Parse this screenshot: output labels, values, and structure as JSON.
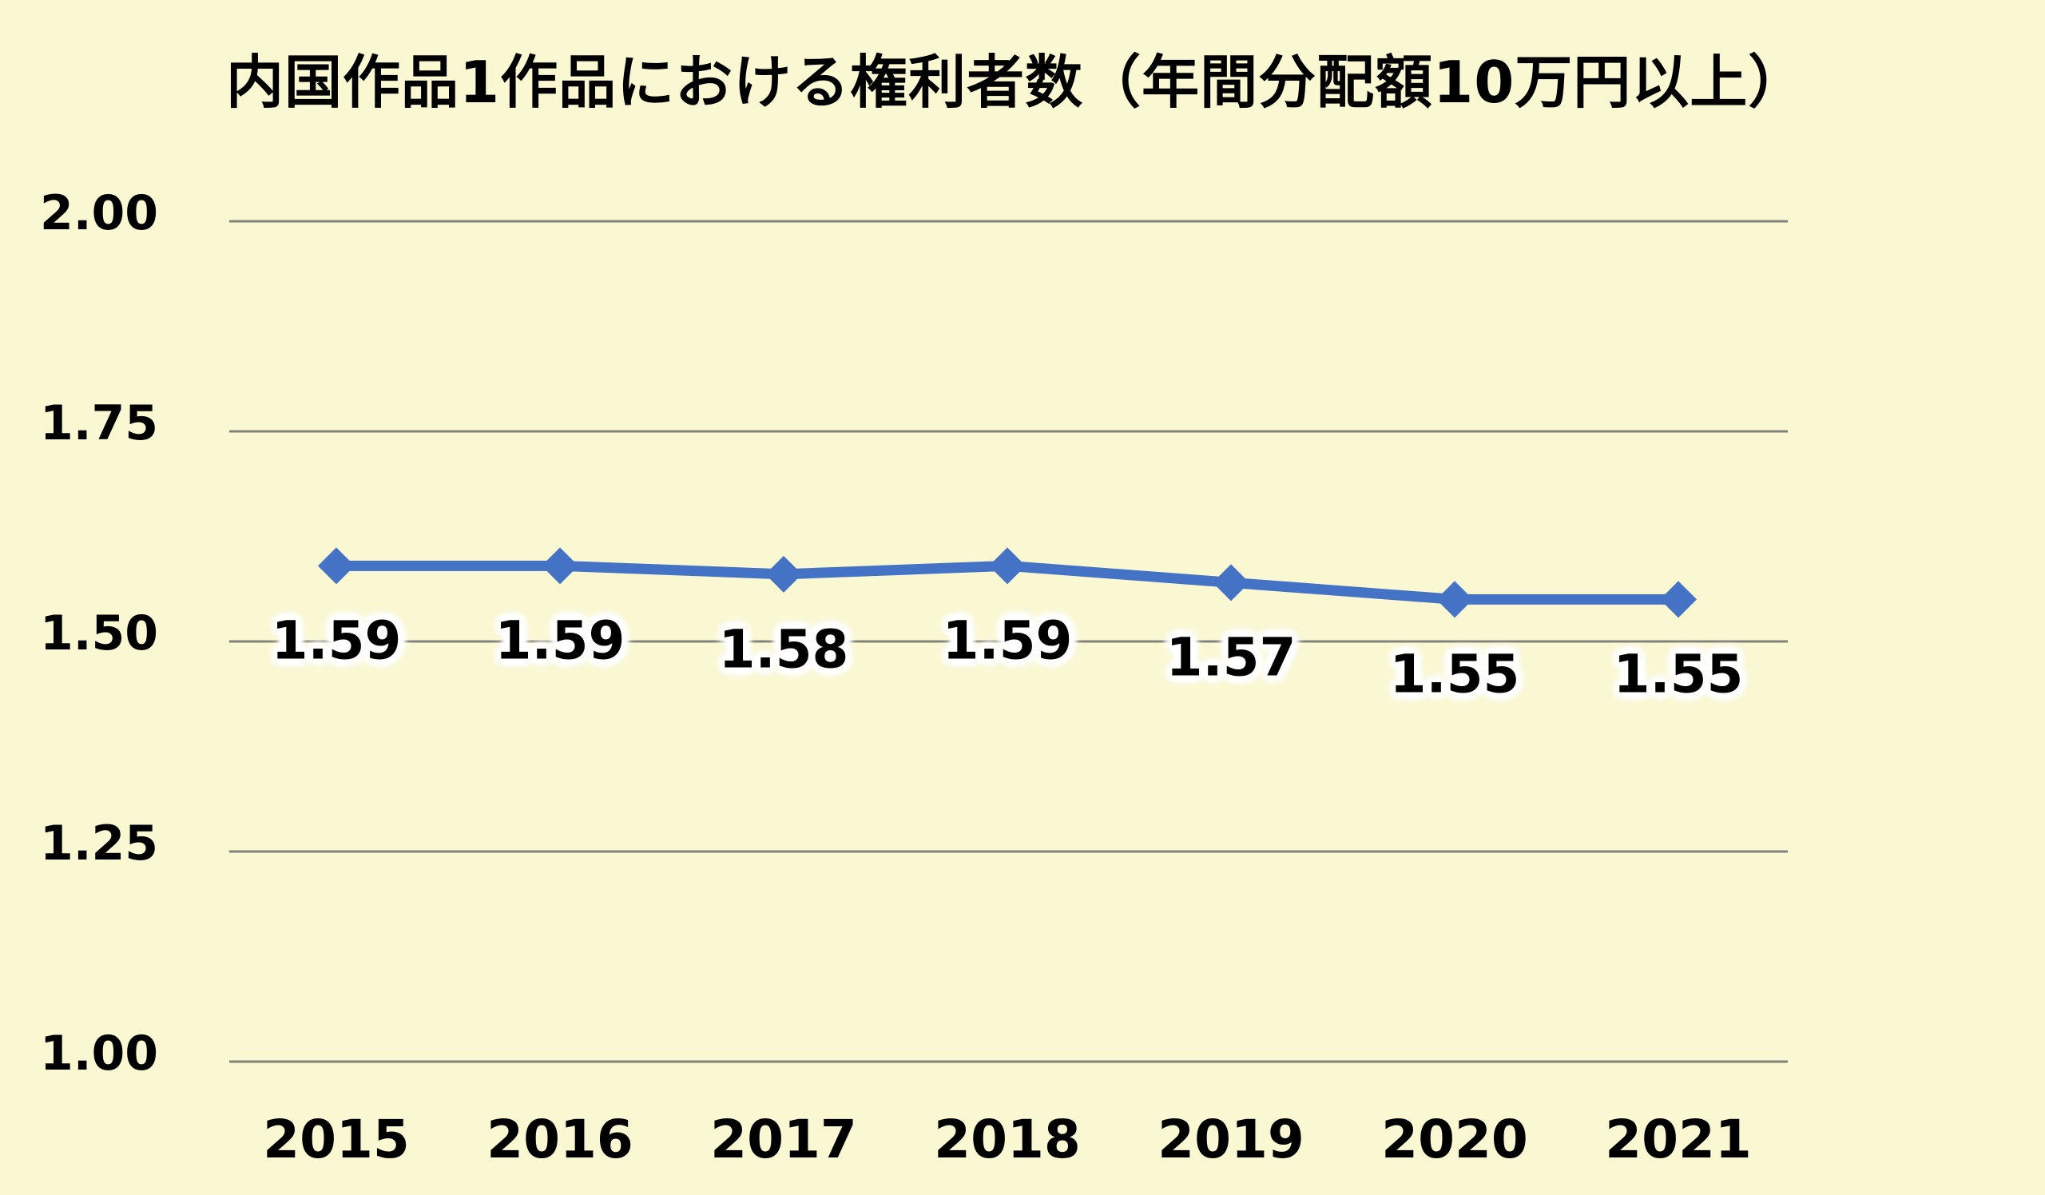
{
  "chart_data": {
    "type": "line",
    "title": "内国作品1作品における権利者数（年間分配額10万円以上）",
    "categories": [
      "2015",
      "2016",
      "2017",
      "2018",
      "2019",
      "2020",
      "2021"
    ],
    "series": [
      {
        "name": "内国作品1作品における権利者数",
        "values": [
          1.59,
          1.59,
          1.58,
          1.59,
          1.57,
          1.55,
          1.55
        ]
      }
    ],
    "data_labels": [
      "1.59",
      "1.59",
      "1.58",
      "1.59",
      "1.57",
      "1.55",
      "1.55"
    ],
    "xlabel": "",
    "ylabel": "",
    "ylim": [
      1.0,
      2.0
    ],
    "yticks": [
      {
        "value": 2.0,
        "label": "2.00"
      },
      {
        "value": 1.75,
        "label": "1.75"
      },
      {
        "value": 1.5,
        "label": "1.50"
      },
      {
        "value": 1.25,
        "label": "1.25"
      },
      {
        "value": 1.0,
        "label": "1.00"
      }
    ],
    "grid": true,
    "legend": "none",
    "marker": "diamond",
    "colors": {
      "background": "#FAF8D2",
      "series": "#4472C4",
      "gridline": "#82827A",
      "label_text": "#000000",
      "label_halo": "#FFFFFF"
    }
  }
}
